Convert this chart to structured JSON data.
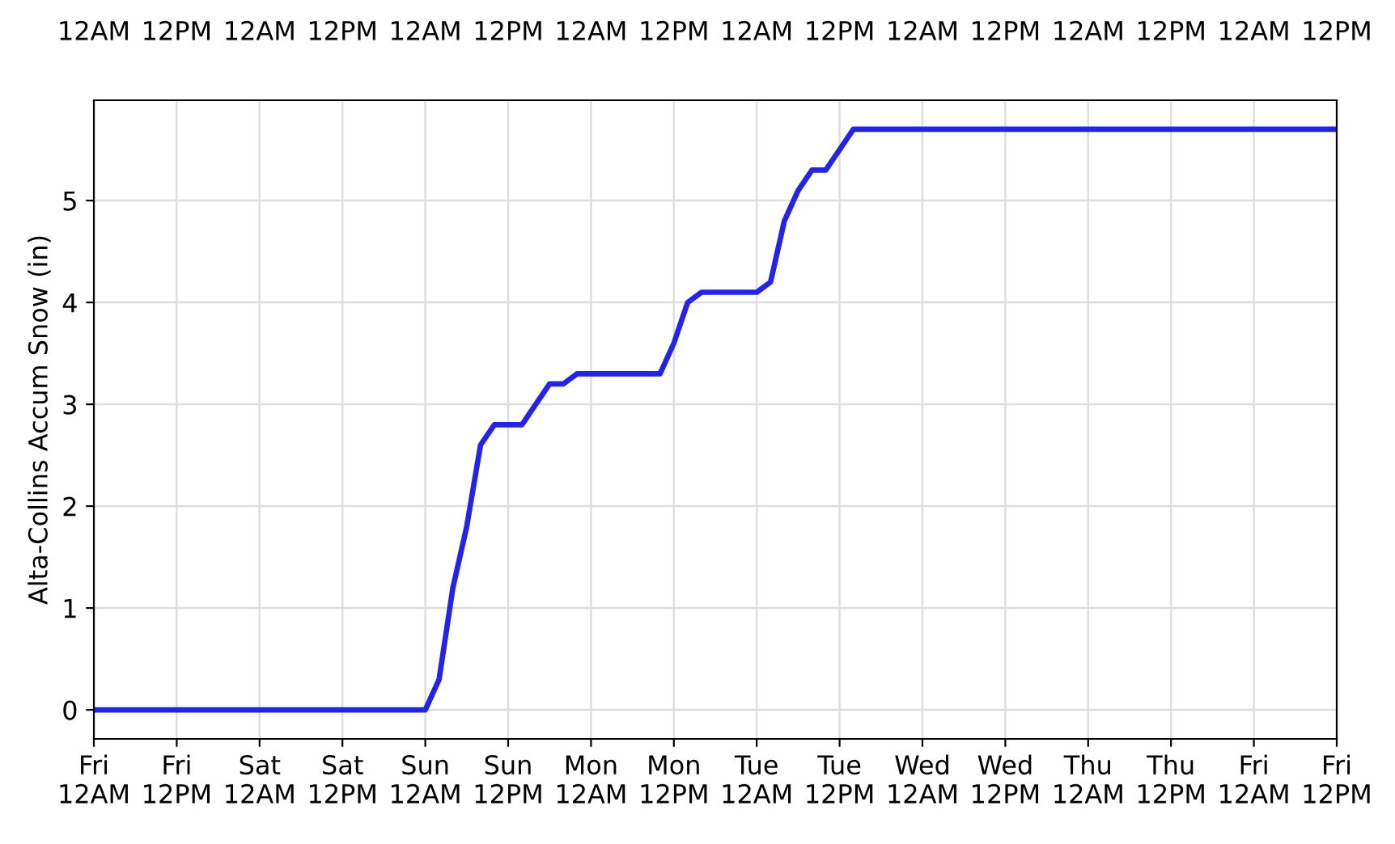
{
  "chart_data": {
    "type": "line",
    "ylabel": "Alta-Collins Accum Snow (in)",
    "categories": [
      "Fri\n12AM",
      null,
      null,
      null,
      null,
      null,
      "Fri\n12PM",
      null,
      null,
      null,
      null,
      null,
      "Sat\n12AM",
      null,
      null,
      null,
      null,
      null,
      "Sat\n12PM",
      null,
      null,
      null,
      null,
      null,
      "Sun\n12AM",
      null,
      null,
      null,
      null,
      null,
      "Sun\n12PM",
      null,
      null,
      null,
      null,
      null,
      "Mon\n12AM",
      null,
      null,
      null,
      null,
      null,
      "Mon\n12PM",
      null,
      null,
      null,
      null,
      null,
      "Tue\n12AM",
      null,
      null,
      null,
      null,
      null,
      "Tue\n12PM",
      null,
      null,
      null,
      null,
      null,
      "Wed\n12AM",
      null,
      null,
      null,
      null,
      null,
      "Wed\n12PM",
      null,
      null,
      null,
      null,
      null,
      "Thu\n12AM",
      null,
      null,
      null,
      null,
      null,
      "Thu\n12PM",
      null,
      null,
      null,
      null,
      null,
      "Fri\n12AM",
      null,
      null,
      null,
      null,
      null,
      "Fri\n12PM"
    ],
    "series": [
      {
        "color": "#2424e6",
        "values": [
          0,
          0,
          0,
          0,
          0,
          0,
          0,
          0,
          0,
          0,
          0,
          0,
          0,
          0,
          0,
          0,
          0,
          0,
          0,
          0,
          0,
          0,
          0,
          0,
          0,
          0.3,
          1.2,
          1.8,
          2.6,
          2.8,
          2.8,
          2.8,
          3.0,
          3.2,
          3.2,
          3.3,
          3.3,
          3.3,
          3.3,
          3.3,
          3.3,
          3.3,
          3.6,
          4.0,
          4.1,
          4.1,
          4.1,
          4.1,
          4.1,
          4.2,
          4.8,
          5.1,
          5.3,
          5.3,
          5.5,
          5.7,
          5.7,
          5.7,
          5.7,
          5.7,
          5.7,
          5.7,
          5.7,
          5.7,
          5.7,
          5.7,
          5.7,
          5.7,
          5.7,
          5.7,
          5.7,
          5.7,
          5.7,
          5.7,
          5.7,
          5.7,
          5.7,
          5.7,
          5.7,
          5.7,
          5.7,
          5.7,
          5.7,
          5.7,
          5.7,
          5.7,
          5.7,
          5.7,
          5.7,
          5.7,
          5.7
        ]
      }
    ],
    "annotations": [
      "12AM",
      "12PM",
      "12AM",
      "12PM",
      "12AM",
      "12PM",
      "12AM",
      "12PM",
      "12AM",
      "12PM",
      "12AM",
      "12PM",
      "12AM",
      "12PM",
      "12AM",
      "12PM"
    ],
    "ylim": [
      -0.285,
      5.985
    ],
    "yticks": [
      0,
      1,
      2,
      3,
      4,
      5
    ],
    "grid": true,
    "marker": "none",
    "line_style": "solid"
  }
}
